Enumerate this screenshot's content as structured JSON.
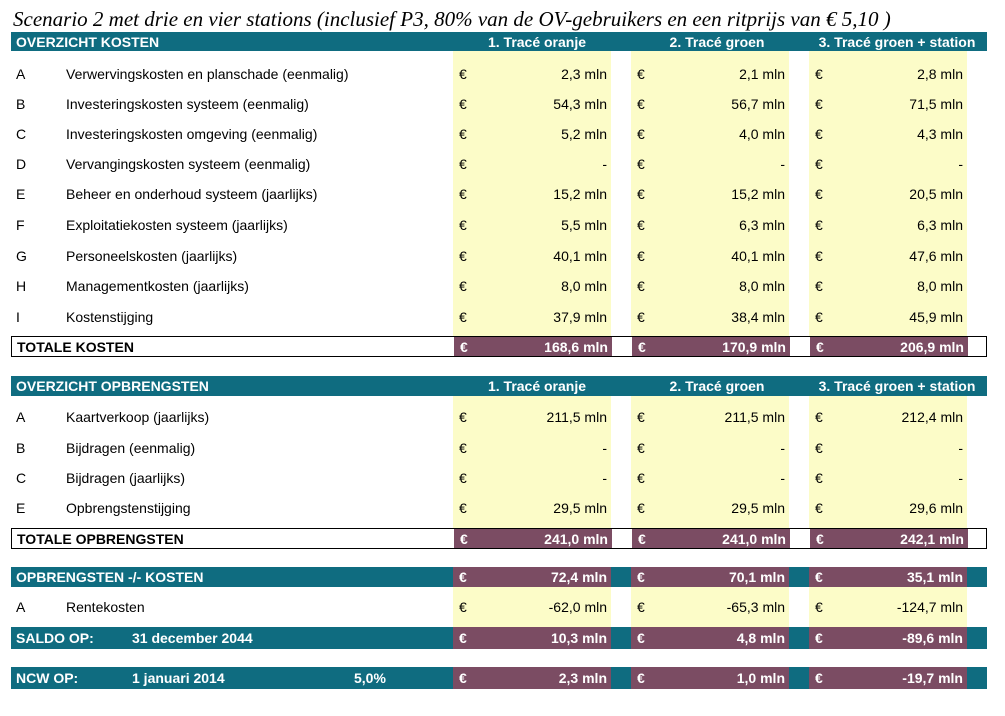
{
  "title": "Scenario 2 met drie en vier stations (inclusief P3, 80% van de OV-gebruikers en een ritprijs van € 5,10 )",
  "columns": [
    "1. Tracé oranje",
    "2. Tracé groen",
    "3. Tracé groen + station"
  ],
  "currency": "€",
  "colors": {
    "header": "#0f6c80",
    "total": "#7b4c63",
    "value_bg": "#fcfcc8"
  },
  "costs": {
    "header": "OVERZICHT KOSTEN",
    "rows": [
      {
        "letter": "A",
        "label": "Verwervingskosten en planschade (eenmalig)",
        "values": [
          "2,3 mln",
          "2,1 mln",
          "2,8 mln"
        ]
      },
      {
        "letter": "B",
        "label": "Investeringskosten systeem (eenmalig)",
        "values": [
          "54,3 mln",
          "56,7 mln",
          "71,5 mln"
        ]
      },
      {
        "letter": "C",
        "label": "Investeringskosten omgeving (eenmalig)",
        "values": [
          "5,2 mln",
          "4,0 mln",
          "4,3 mln"
        ]
      },
      {
        "letter": "D",
        "label": "Vervangingskosten systeem (eenmalig)",
        "values": [
          "-",
          "-",
          "-"
        ]
      },
      {
        "letter": "E",
        "label": "Beheer en onderhoud systeem (jaarlijks)",
        "values": [
          "15,2 mln",
          "15,2 mln",
          "20,5 mln"
        ]
      },
      {
        "letter": "F",
        "label": "Exploitatiekosten systeem (jaarlijks)",
        "values": [
          "5,5 mln",
          "6,3 mln",
          "6,3 mln"
        ]
      },
      {
        "letter": "G",
        "label": "Personeelskosten (jaarlijks)",
        "values": [
          "40,1 mln",
          "40,1 mln",
          "47,6 mln"
        ]
      },
      {
        "letter": "H",
        "label": "Managementkosten (jaarlijks)",
        "values": [
          "8,0 mln",
          "8,0 mln",
          "8,0 mln"
        ]
      },
      {
        "letter": "I",
        "label": "Kostenstijging",
        "values": [
          "37,9 mln",
          "38,4 mln",
          "45,9 mln"
        ]
      }
    ],
    "total_label": "TOTALE KOSTEN",
    "totals": [
      "168,6 mln",
      "170,9 mln",
      "206,9 mln"
    ]
  },
  "revenues": {
    "header": "OVERZICHT OPBRENGSTEN",
    "rows": [
      {
        "letter": "A",
        "label": "Kaartverkoop (jaarlijks)",
        "values": [
          "211,5 mln",
          "211,5 mln",
          "212,4 mln"
        ]
      },
      {
        "letter": "B",
        "label": "Bijdragen (eenmalig)",
        "values": [
          "-",
          "-",
          "-"
        ]
      },
      {
        "letter": "C",
        "label": "Bijdragen (jaarlijks)",
        "values": [
          "-",
          "-",
          "-"
        ]
      },
      {
        "letter": "E",
        "label": "Opbrengstenstijging",
        "values": [
          "29,5 mln",
          "29,5 mln",
          "29,6 mln"
        ]
      }
    ],
    "total_label": "TOTALE OPBRENGSTEN",
    "totals": [
      "241,0 mln",
      "241,0 mln",
      "242,1 mln"
    ]
  },
  "net": {
    "label": "OPBRENGSTEN -/- KOSTEN",
    "values": [
      "72,4 mln",
      "70,1 mln",
      "35,1 mln"
    ]
  },
  "interest": {
    "letter": "A",
    "label": "Rentekosten",
    "values": [
      "-62,0 mln",
      "-65,3 mln",
      "-124,7 mln"
    ]
  },
  "saldo": {
    "label": "SALDO OP:",
    "date": "31 december 2044",
    "values": [
      "10,3 mln",
      "4,8 mln",
      "-89,6 mln"
    ]
  },
  "ncw": {
    "label": "NCW OP:",
    "date": "1 januari 2014",
    "rate": "5,0%",
    "values": [
      "2,3 mln",
      "1,0 mln",
      "-19,7 mln"
    ]
  }
}
